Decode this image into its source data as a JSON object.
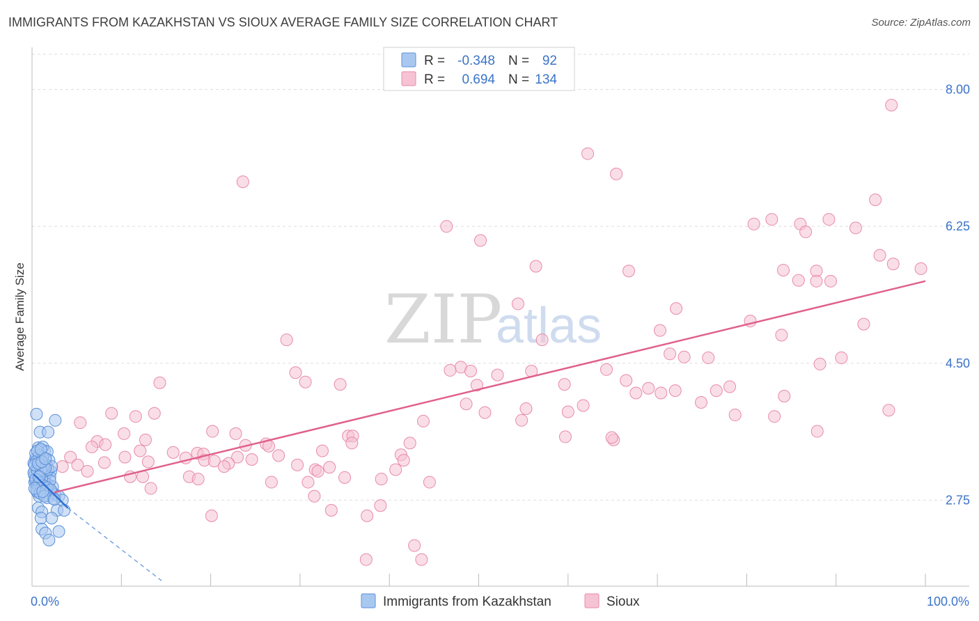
{
  "title": "IMMIGRANTS FROM KAZAKHSTAN VS SIOUX AVERAGE FAMILY SIZE CORRELATION CHART",
  "source": "Source: ZipAtlas.com",
  "watermark": {
    "zip": "ZIP",
    "atlas": "atlas"
  },
  "colors": {
    "kazakhstan_fill": "#a9c8f0",
    "kazakhstan_stroke": "#5b8fd8",
    "kazakhstan_line": "#2f6fd0",
    "sioux_fill": "#f6c3d4",
    "sioux_stroke": "#e88aa8",
    "sioux_line": "#e0608c",
    "accent_text": "#3b73c9",
    "grid": "#dddddd"
  },
  "legend_top": {
    "rows": [
      {
        "r_label": "R =",
        "r_value": "-0.348",
        "n_label": "N =",
        "n_value": "92"
      },
      {
        "r_label": "R =",
        "r_value": "0.694",
        "n_label": "N =",
        "n_value": "134"
      }
    ]
  },
  "legend_bottom": {
    "items": [
      "Immigrants from Kazakhstan",
      "Sioux"
    ]
  },
  "chart_data": {
    "type": "scatter",
    "title": "IMMIGRANTS FROM KAZAKHSTAN VS SIOUX AVERAGE FAMILY SIZE CORRELATION CHART",
    "xlabel": "",
    "ylabel": "Average Family Size",
    "xlim": [
      0,
      100
    ],
    "ylim": [
      1.65,
      8.45
    ],
    "x_tick_labels": [
      {
        "value": 0,
        "label": "0.0%"
      },
      {
        "value": 100,
        "label": "100.0%"
      }
    ],
    "y_ticks": [
      {
        "value": 2.75,
        "label": "2.75"
      },
      {
        "value": 4.5,
        "label": "4.50"
      },
      {
        "value": 6.25,
        "label": "6.25"
      },
      {
        "value": 8.0,
        "label": "8.00"
      }
    ],
    "grid": true,
    "legend_position": "bottom-center",
    "series": [
      {
        "name": "Immigrants from Kazakhstan",
        "color": "#a9c8f0",
        "trend": {
          "x": [
            0.2,
            4.0
          ],
          "y": [
            3.08,
            2.65
          ],
          "dashed_extension": {
            "x": [
              4.0,
              14.5
            ],
            "y": [
              2.65,
              1.72
            ]
          }
        },
        "points": [
          [
            0.5,
            3.85
          ],
          [
            0.9,
            3.62
          ],
          [
            1.4,
            3.38
          ],
          [
            1.8,
            3.62
          ],
          [
            2.6,
            3.77
          ],
          [
            0.7,
            3.42
          ],
          [
            1.2,
            3.43
          ],
          [
            1.7,
            3.37
          ],
          [
            0.4,
            3.28
          ],
          [
            0.8,
            3.28
          ],
          [
            1.3,
            3.22
          ],
          [
            1.9,
            3.26
          ],
          [
            0.6,
            3.18
          ],
          [
            1.1,
            3.15
          ],
          [
            1.6,
            3.2
          ],
          [
            2.1,
            3.12
          ],
          [
            0.3,
            3.12
          ],
          [
            0.7,
            3.1
          ],
          [
            1.2,
            3.08
          ],
          [
            1.5,
            3.06
          ],
          [
            2.0,
            3.05
          ],
          [
            0.4,
            3.0
          ],
          [
            0.9,
            3.0
          ],
          [
            1.4,
            2.98
          ],
          [
            1.8,
            2.95
          ],
          [
            2.3,
            2.92
          ],
          [
            0.5,
            2.92
          ],
          [
            1.0,
            2.9
          ],
          [
            1.6,
            2.88
          ],
          [
            2.2,
            2.85
          ],
          [
            0.6,
            2.85
          ],
          [
            1.3,
            2.82
          ],
          [
            2.6,
            2.82
          ],
          [
            3.0,
            2.8
          ],
          [
            0.8,
            2.8
          ],
          [
            1.7,
            2.78
          ],
          [
            2.4,
            2.77
          ],
          [
            3.4,
            2.75
          ],
          [
            0.7,
            2.65
          ],
          [
            1.1,
            2.6
          ],
          [
            2.8,
            2.62
          ],
          [
            3.6,
            2.62
          ],
          [
            1.0,
            2.52
          ],
          [
            2.2,
            2.52
          ],
          [
            1.1,
            2.38
          ],
          [
            1.5,
            2.33
          ],
          [
            3.0,
            2.35
          ],
          [
            1.9,
            2.24
          ],
          [
            0.2,
            3.22
          ],
          [
            0.5,
            3.15
          ],
          [
            0.9,
            3.08
          ],
          [
            1.3,
            3.0
          ],
          [
            0.3,
            2.98
          ],
          [
            0.6,
            2.95
          ],
          [
            1.0,
            2.93
          ],
          [
            1.5,
            2.9
          ],
          [
            0.4,
            3.35
          ],
          [
            0.8,
            3.32
          ],
          [
            1.2,
            3.3
          ],
          [
            1.6,
            3.1
          ],
          [
            2.0,
            3.0
          ],
          [
            0.3,
            3.06
          ],
          [
            0.7,
            3.04
          ],
          [
            1.1,
            3.02
          ],
          [
            1.4,
            3.12
          ],
          [
            1.8,
            3.14
          ],
          [
            2.2,
            3.18
          ],
          [
            0.5,
            3.25
          ],
          [
            0.9,
            3.2
          ],
          [
            1.3,
            3.18
          ],
          [
            0.2,
            3.1
          ],
          [
            0.6,
            3.12
          ],
          [
            1.0,
            3.14
          ],
          [
            1.5,
            3.16
          ],
          [
            0.3,
            3.2
          ],
          [
            0.7,
            3.22
          ],
          [
            1.1,
            3.24
          ],
          [
            0.4,
            3.02
          ],
          [
            0.8,
            2.97
          ],
          [
            1.2,
            2.94
          ],
          [
            1.7,
            2.91
          ],
          [
            2.1,
            2.88
          ],
          [
            0.5,
            2.87
          ],
          [
            0.9,
            2.84
          ],
          [
            1.4,
            2.8
          ],
          [
            0.6,
            3.38
          ],
          [
            1.0,
            3.4
          ],
          [
            1.5,
            3.28
          ],
          [
            0.3,
            2.9
          ],
          [
            0.8,
            3.05
          ],
          [
            1.2,
            2.86
          ],
          [
            2.5,
            2.76
          ]
        ]
      },
      {
        "name": "Sioux",
        "color": "#f6c3d4",
        "trend": {
          "x": [
            2.5,
            100
          ],
          "y": [
            2.85,
            5.55
          ]
        },
        "points": [
          [
            96.2,
            7.8
          ],
          [
            62.2,
            7.18
          ],
          [
            65.4,
            6.92
          ],
          [
            23.6,
            6.82
          ],
          [
            46.4,
            6.25
          ],
          [
            50.2,
            6.07
          ],
          [
            94.4,
            6.59
          ],
          [
            82.8,
            6.34
          ],
          [
            89.2,
            6.34
          ],
          [
            92.2,
            6.23
          ],
          [
            80.8,
            6.28
          ],
          [
            86.0,
            6.28
          ],
          [
            86.6,
            6.18
          ],
          [
            94.9,
            5.88
          ],
          [
            96.4,
            5.77
          ],
          [
            99.5,
            5.71
          ],
          [
            56.4,
            5.74
          ],
          [
            66.8,
            5.68
          ],
          [
            84.1,
            5.69
          ],
          [
            85.8,
            5.56
          ],
          [
            87.8,
            5.68
          ],
          [
            87.8,
            5.55
          ],
          [
            89.4,
            5.55
          ],
          [
            54.4,
            5.26
          ],
          [
            72.1,
            5.2
          ],
          [
            80.4,
            5.04
          ],
          [
            93.1,
            5.0
          ],
          [
            70.3,
            4.92
          ],
          [
            83.9,
            4.86
          ],
          [
            57.1,
            4.8
          ],
          [
            28.5,
            4.8
          ],
          [
            71.4,
            4.62
          ],
          [
            73.0,
            4.58
          ],
          [
            90.6,
            4.57
          ],
          [
            75.7,
            4.57
          ],
          [
            88.2,
            4.49
          ],
          [
            29.5,
            4.38
          ],
          [
            48.0,
            4.45
          ],
          [
            46.8,
            4.41
          ],
          [
            55.9,
            4.4
          ],
          [
            49.1,
            4.4
          ],
          [
            64.3,
            4.42
          ],
          [
            52.1,
            4.35
          ],
          [
            30.6,
            4.26
          ],
          [
            34.5,
            4.23
          ],
          [
            49.8,
            4.22
          ],
          [
            66.5,
            4.28
          ],
          [
            59.6,
            4.23
          ],
          [
            69.0,
            4.18
          ],
          [
            67.6,
            4.12
          ],
          [
            72.0,
            4.15
          ],
          [
            76.6,
            4.15
          ],
          [
            78.1,
            4.2
          ],
          [
            14.3,
            4.25
          ],
          [
            70.4,
            4.12
          ],
          [
            74.9,
            4.0
          ],
          [
            84.2,
            4.08
          ],
          [
            48.6,
            3.98
          ],
          [
            55.3,
            3.92
          ],
          [
            61.7,
            3.96
          ],
          [
            50.7,
            3.87
          ],
          [
            60.0,
            3.88
          ],
          [
            78.7,
            3.84
          ],
          [
            95.9,
            3.9
          ],
          [
            11.6,
            3.82
          ],
          [
            54.8,
            3.77
          ],
          [
            83.1,
            3.82
          ],
          [
            43.8,
            3.76
          ],
          [
            5.4,
            3.74
          ],
          [
            10.3,
            3.6
          ],
          [
            13.7,
            3.86
          ],
          [
            8.9,
            3.86
          ],
          [
            20.2,
            3.63
          ],
          [
            22.8,
            3.6
          ],
          [
            87.9,
            3.63
          ],
          [
            59.7,
            3.56
          ],
          [
            65.1,
            3.52
          ],
          [
            64.9,
            3.55
          ],
          [
            35.4,
            3.57
          ],
          [
            35.9,
            3.57
          ],
          [
            7.3,
            3.5
          ],
          [
            35.8,
            3.48
          ],
          [
            42.3,
            3.48
          ],
          [
            6.7,
            3.43
          ],
          [
            8.2,
            3.46
          ],
          [
            12.7,
            3.52
          ],
          [
            26.2,
            3.47
          ],
          [
            26.5,
            3.44
          ],
          [
            23.9,
            3.45
          ],
          [
            12.1,
            3.38
          ],
          [
            15.8,
            3.36
          ],
          [
            18.5,
            3.35
          ],
          [
            32.5,
            3.38
          ],
          [
            27.6,
            3.32
          ],
          [
            19.2,
            3.34
          ],
          [
            41.3,
            3.33
          ],
          [
            23.0,
            3.3
          ],
          [
            24.6,
            3.27
          ],
          [
            19.3,
            3.26
          ],
          [
            4.3,
            3.3
          ],
          [
            10.4,
            3.3
          ],
          [
            17.2,
            3.29
          ],
          [
            8.1,
            3.23
          ],
          [
            13.0,
            3.24
          ],
          [
            41.6,
            3.26
          ],
          [
            20.4,
            3.25
          ],
          [
            22.0,
            3.22
          ],
          [
            29.7,
            3.2
          ],
          [
            21.5,
            3.18
          ],
          [
            33.3,
            3.17
          ],
          [
            40.7,
            3.14
          ],
          [
            31.7,
            3.14
          ],
          [
            3.4,
            3.18
          ],
          [
            5.1,
            3.2
          ],
          [
            6.2,
            3.12
          ],
          [
            11.0,
            3.05
          ],
          [
            12.4,
            3.05
          ],
          [
            17.6,
            3.05
          ],
          [
            18.6,
            3.02
          ],
          [
            35.0,
            3.04
          ],
          [
            39.1,
            3.02
          ],
          [
            44.5,
            2.98
          ],
          [
            26.8,
            2.98
          ],
          [
            30.9,
            2.98
          ],
          [
            13.3,
            2.9
          ],
          [
            31.6,
            2.8
          ],
          [
            39.0,
            2.68
          ],
          [
            33.5,
            2.62
          ],
          [
            37.5,
            2.55
          ],
          [
            20.1,
            2.55
          ],
          [
            37.4,
            1.99
          ],
          [
            43.6,
            1.99
          ],
          [
            42.8,
            2.17
          ],
          [
            32.0,
            3.12
          ]
        ]
      }
    ]
  }
}
